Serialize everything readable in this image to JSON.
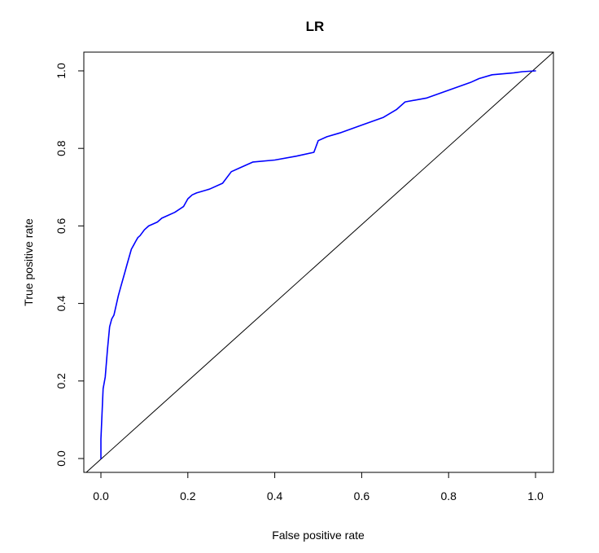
{
  "chart_data": {
    "type": "line",
    "title": "LR",
    "xlabel": "False positive rate",
    "ylabel": "True positive rate",
    "xlim": [
      0,
      1
    ],
    "ylim": [
      0,
      1
    ],
    "x_ticks": [
      0.0,
      0.2,
      0.4,
      0.6,
      0.8,
      1.0
    ],
    "y_ticks": [
      0.0,
      0.2,
      0.4,
      0.6,
      0.8,
      1.0
    ],
    "x_tick_labels": [
      "0.0",
      "0.2",
      "0.4",
      "0.6",
      "0.8",
      "1.0"
    ],
    "y_tick_labels": [
      "0.0",
      "0.2",
      "0.4",
      "0.6",
      "0.8",
      "1.0"
    ],
    "grid": false,
    "series": [
      {
        "color": "#0000ff",
        "x": [
          0.0,
          0.0,
          0.005,
          0.01,
          0.015,
          0.02,
          0.025,
          0.03,
          0.04,
          0.045,
          0.05,
          0.055,
          0.06,
          0.065,
          0.07,
          0.075,
          0.08,
          0.085,
          0.09,
          0.1,
          0.11,
          0.12,
          0.13,
          0.14,
          0.15,
          0.17,
          0.19,
          0.2,
          0.21,
          0.22,
          0.25,
          0.28,
          0.3,
          0.32,
          0.35,
          0.4,
          0.45,
          0.49,
          0.5,
          0.52,
          0.55,
          0.6,
          0.65,
          0.68,
          0.7,
          0.75,
          0.8,
          0.85,
          0.87,
          0.9,
          0.95,
          0.97,
          1.0
        ],
        "y": [
          0.0,
          0.05,
          0.18,
          0.21,
          0.28,
          0.34,
          0.36,
          0.37,
          0.42,
          0.44,
          0.46,
          0.48,
          0.5,
          0.52,
          0.54,
          0.55,
          0.56,
          0.57,
          0.575,
          0.59,
          0.6,
          0.605,
          0.61,
          0.62,
          0.625,
          0.635,
          0.65,
          0.67,
          0.68,
          0.685,
          0.695,
          0.71,
          0.74,
          0.75,
          0.765,
          0.77,
          0.78,
          0.79,
          0.82,
          0.83,
          0.84,
          0.86,
          0.88,
          0.9,
          0.92,
          0.93,
          0.95,
          0.97,
          0.98,
          0.99,
          0.995,
          0.998,
          1.0
        ]
      },
      {
        "color": "#000000",
        "x": [
          0,
          1
        ],
        "y": [
          0,
          1
        ]
      }
    ]
  }
}
